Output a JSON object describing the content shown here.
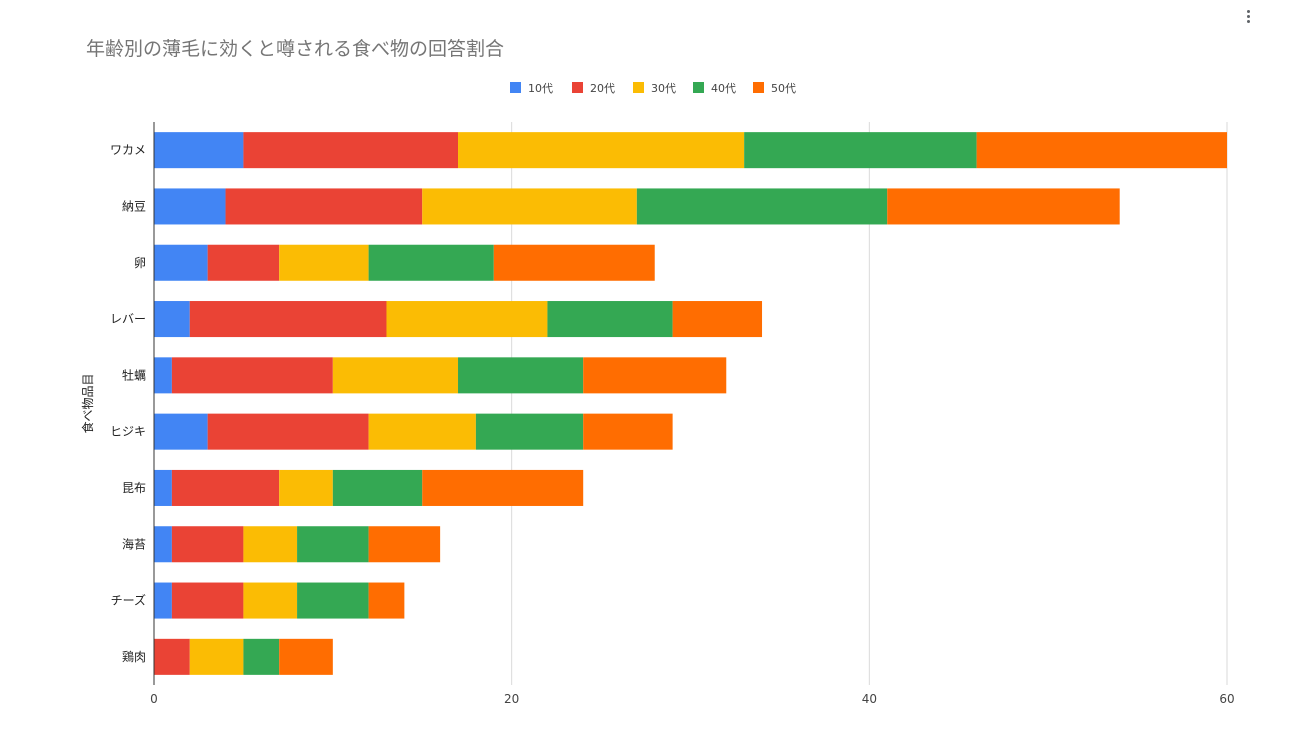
{
  "chart_data": {
    "type": "bar",
    "orientation": "horizontal",
    "stacked": true,
    "title": "年齢別の薄毛に効くと噂される食べ物の回答割合",
    "xlabel": "",
    "ylabel": "食べ物品目",
    "xlim": [
      0,
      60
    ],
    "x_ticks": [
      "0",
      "20",
      "40",
      "60"
    ],
    "grid": true,
    "legend_position": "top",
    "categories": [
      "ワカメ",
      "納豆",
      "卵",
      "レバー",
      "牡蠣",
      "ヒジキ",
      "昆布",
      "海苔",
      "チーズ",
      "鶏肉"
    ],
    "series": [
      {
        "name": "10代",
        "color": "#4285f4",
        "values": [
          5,
          4,
          3,
          2,
          1,
          3,
          1,
          1,
          1,
          0
        ]
      },
      {
        "name": "20代",
        "color": "#ea4335",
        "values": [
          12,
          11,
          4,
          11,
          9,
          9,
          6,
          4,
          4,
          2
        ]
      },
      {
        "name": "30代",
        "color": "#fbbc04",
        "values": [
          16,
          12,
          5,
          9,
          7,
          6,
          3,
          3,
          3,
          3
        ]
      },
      {
        "name": "40代",
        "color": "#34a853",
        "values": [
          13,
          14,
          7,
          7,
          7,
          6,
          5,
          4,
          4,
          2
        ]
      },
      {
        "name": "50代",
        "color": "#ff6d01",
        "values": [
          14,
          13,
          9,
          5,
          8,
          5,
          9,
          4,
          2,
          3
        ]
      }
    ]
  }
}
